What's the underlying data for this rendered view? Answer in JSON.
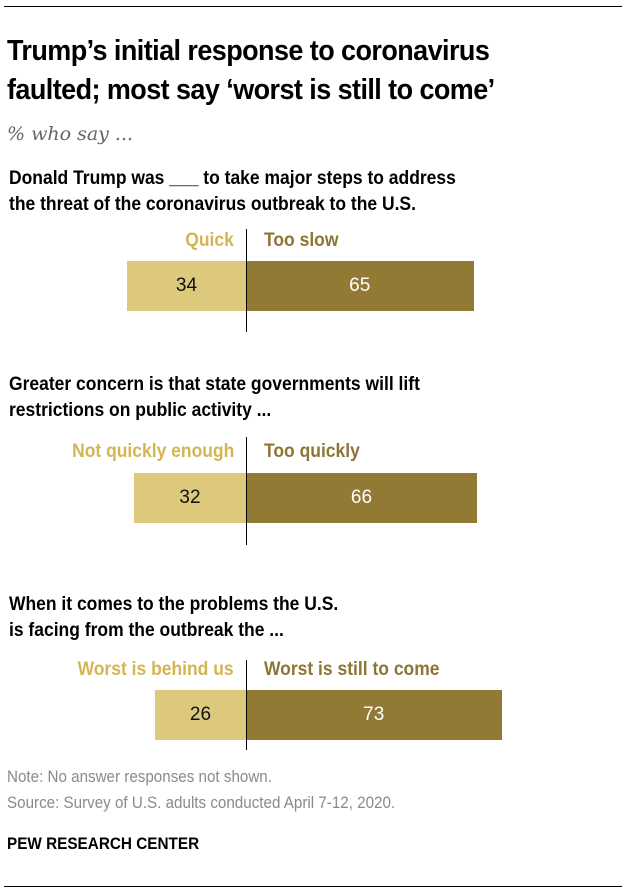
{
  "header": {
    "title_line1": "Trump’s initial response to coronavirus",
    "title_line2": "faulted; most say ‘worst is still to come’",
    "subtitle": "% who say ..."
  },
  "footer": {
    "note": "Note: No answer responses not shown.",
    "source": "Source: Survey of U.S. adults conducted April 7-12, 2020.",
    "brand": "PEW RESEARCH CENTER"
  },
  "colors": {
    "left_bar": "#dcc97c",
    "right_bar": "#927a35",
    "left_label": "#d3b554",
    "right_label": "#8d7534"
  },
  "chart_data": [
    {
      "type": "bar",
      "orientation": "horizontal-diverging",
      "question_line1": "Donald Trump was ___ to take major steps to address",
      "question_line2": "the threat of the coronavirus outbreak to the U.S.",
      "categories": [
        "Quick",
        "Too slow"
      ],
      "values": [
        34,
        65
      ],
      "xlim": [
        0,
        100
      ]
    },
    {
      "type": "bar",
      "orientation": "horizontal-diverging",
      "question_line1": "Greater concern is that state governments will lift",
      "question_line2": "restrictions on public activity ...",
      "categories": [
        "Not quickly enough",
        "Too quickly"
      ],
      "values": [
        32,
        66
      ],
      "xlim": [
        0,
        100
      ]
    },
    {
      "type": "bar",
      "orientation": "horizontal-diverging",
      "question_line1": "When it comes to the problems the U.S.",
      "question_line2": "is facing from the outbreak the ...",
      "categories": [
        "Worst is behind us",
        "Worst is still to come"
      ],
      "values": [
        26,
        73
      ],
      "xlim": [
        0,
        100
      ]
    }
  ]
}
